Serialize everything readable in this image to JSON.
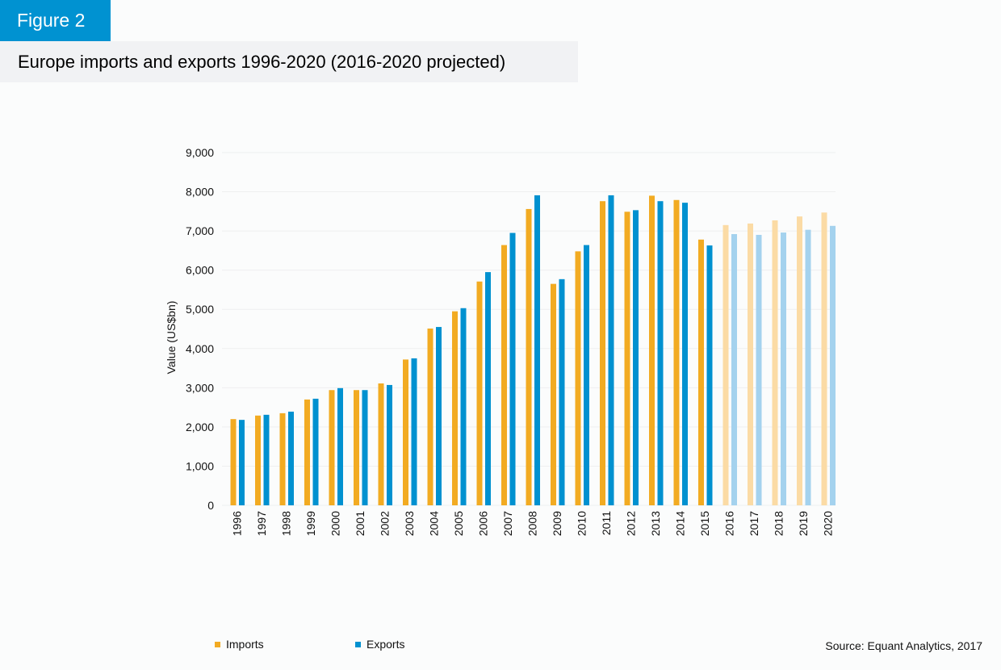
{
  "figure_label": "Figure 2",
  "source": "Source: Equant Analytics, 2017",
  "chart_data": {
    "type": "bar",
    "title": "Europe imports and exports 1996-2020 (2016-2020 projected)",
    "xlabel": "",
    "ylabel": "Value (US$bn)",
    "ylim": [
      0,
      9000
    ],
    "yticks": [
      0,
      1000,
      2000,
      3000,
      4000,
      5000,
      6000,
      7000,
      8000,
      9000
    ],
    "ytick_labels": [
      "0",
      "1,000",
      "2,000",
      "3,000",
      "4,000",
      "5,000",
      "6,000",
      "7,000",
      "8,000",
      "9,000"
    ],
    "grid": true,
    "legend_position": "bottom",
    "projected_from": "2016",
    "categories": [
      "1996",
      "1997",
      "1998",
      "1999",
      "2000",
      "2001",
      "2002",
      "2003",
      "2004",
      "2005",
      "2006",
      "2007",
      "2008",
      "2009",
      "2010",
      "2011",
      "2012",
      "2013",
      "2014",
      "2015",
      "2016",
      "2017",
      "2018",
      "2019",
      "2020"
    ],
    "series": [
      {
        "name": "Imports",
        "color": "#f2ab22",
        "projected_color": "#fbdba5",
        "values": [
          2200,
          2290,
          2350,
          2700,
          2940,
          2940,
          3110,
          3720,
          4510,
          4950,
          5710,
          6640,
          7560,
          5650,
          6480,
          7760,
          7490,
          7900,
          7790,
          6780,
          7150,
          7190,
          7270,
          7370,
          7470
        ]
      },
      {
        "name": "Exports",
        "color": "#0091d0",
        "projected_color": "#a4d2ee",
        "values": [
          2180,
          2310,
          2390,
          2720,
          2990,
          2940,
          3070,
          3750,
          4550,
          5030,
          5950,
          6950,
          7910,
          5770,
          6640,
          7910,
          7530,
          7760,
          7720,
          6630,
          6920,
          6900,
          6960,
          7030,
          7130
        ]
      }
    ]
  }
}
